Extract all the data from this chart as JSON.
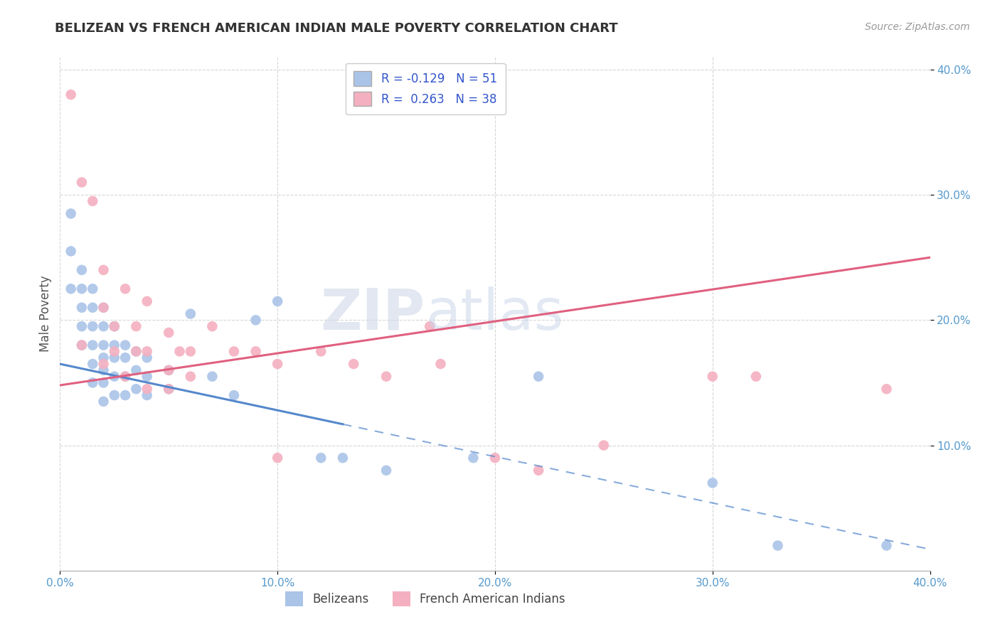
{
  "title": "BELIZEAN VS FRENCH AMERICAN INDIAN MALE POVERTY CORRELATION CHART",
  "source": "Source: ZipAtlas.com",
  "ylabel": "Male Poverty",
  "xlim": [
    0.0,
    0.4
  ],
  "ylim": [
    0.0,
    0.4
  ],
  "grid_color": "#cccccc",
  "background_color": "#ffffff",
  "watermark_zip": "ZIP",
  "watermark_atlas": "atlas",
  "series": [
    {
      "name": "Belizeans",
      "R": -0.129,
      "N": 51,
      "color": "#aac4e8",
      "line_color": "#5588cc",
      "x": [
        0.005,
        0.005,
        0.005,
        0.01,
        0.01,
        0.01,
        0.01,
        0.01,
        0.015,
        0.015,
        0.015,
        0.015,
        0.015,
        0.015,
        0.02,
        0.02,
        0.02,
        0.02,
        0.02,
        0.02,
        0.02,
        0.025,
        0.025,
        0.025,
        0.025,
        0.025,
        0.03,
        0.03,
        0.03,
        0.03,
        0.035,
        0.035,
        0.035,
        0.04,
        0.04,
        0.04,
        0.05,
        0.05,
        0.06,
        0.07,
        0.08,
        0.09,
        0.1,
        0.12,
        0.13,
        0.15,
        0.19,
        0.22,
        0.3,
        0.33,
        0.38
      ],
      "y": [
        0.285,
        0.255,
        0.225,
        0.24,
        0.225,
        0.21,
        0.195,
        0.18,
        0.225,
        0.21,
        0.195,
        0.18,
        0.165,
        0.15,
        0.21,
        0.195,
        0.18,
        0.17,
        0.16,
        0.15,
        0.135,
        0.195,
        0.18,
        0.17,
        0.155,
        0.14,
        0.18,
        0.17,
        0.155,
        0.14,
        0.175,
        0.16,
        0.145,
        0.17,
        0.155,
        0.14,
        0.16,
        0.145,
        0.205,
        0.155,
        0.14,
        0.2,
        0.215,
        0.09,
        0.09,
        0.08,
        0.09,
        0.155,
        0.07,
        0.02,
        0.02
      ],
      "line_x_solid_end": 0.13,
      "line_intercept": 0.165,
      "line_slope": -0.37
    },
    {
      "name": "French American Indians",
      "R": 0.263,
      "N": 38,
      "color": "#f4b0c0",
      "line_color": "#e06080",
      "x": [
        0.005,
        0.01,
        0.015,
        0.02,
        0.02,
        0.025,
        0.025,
        0.03,
        0.035,
        0.035,
        0.04,
        0.04,
        0.05,
        0.05,
        0.055,
        0.06,
        0.07,
        0.08,
        0.09,
        0.1,
        0.12,
        0.135,
        0.17,
        0.175,
        0.2,
        0.22,
        0.25,
        0.3,
        0.32,
        0.38,
        0.01,
        0.02,
        0.03,
        0.04,
        0.05,
        0.06,
        0.1,
        0.15
      ],
      "y": [
        0.38,
        0.31,
        0.295,
        0.24,
        0.21,
        0.195,
        0.175,
        0.225,
        0.195,
        0.175,
        0.215,
        0.175,
        0.19,
        0.16,
        0.175,
        0.175,
        0.195,
        0.175,
        0.175,
        0.09,
        0.175,
        0.165,
        0.195,
        0.165,
        0.09,
        0.08,
        0.1,
        0.155,
        0.155,
        0.145,
        0.18,
        0.165,
        0.155,
        0.145,
        0.145,
        0.155,
        0.165,
        0.155
      ],
      "line_intercept": 0.148,
      "line_slope": 0.255
    }
  ]
}
